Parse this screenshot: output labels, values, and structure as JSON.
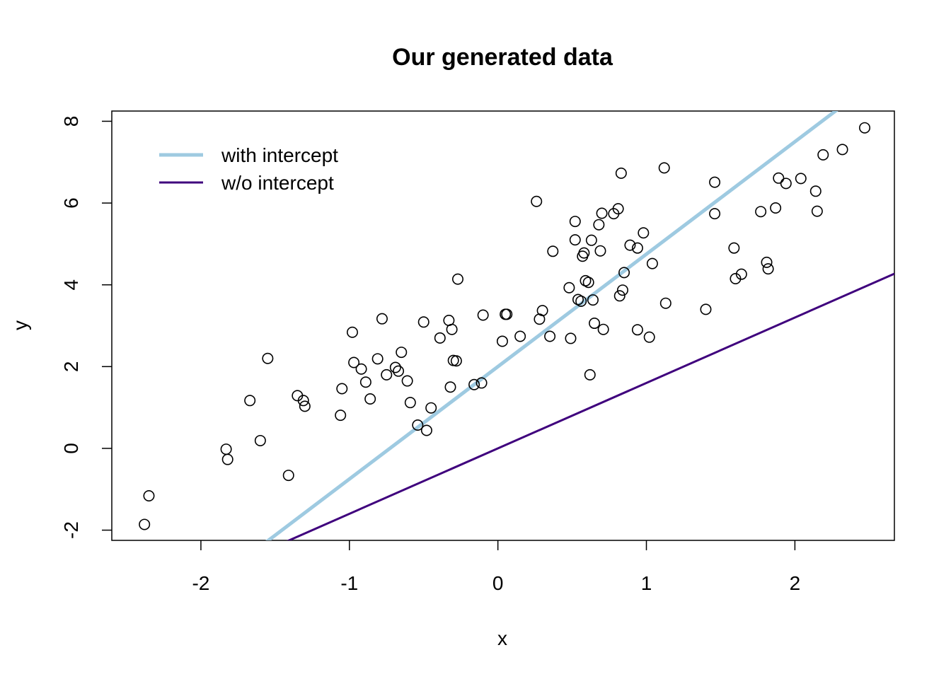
{
  "chart_data": {
    "type": "scatter",
    "title": "Our generated data",
    "xlabel": "x",
    "ylabel": "y",
    "xlim": [
      -2.6,
      2.67
    ],
    "ylim": [
      -2.25,
      8.25
    ],
    "xticks": [
      -2,
      -1,
      0,
      1,
      2
    ],
    "yticks": [
      -2,
      0,
      2,
      4,
      6,
      8
    ],
    "xtick_labels": [
      "-2",
      "-1",
      "0",
      "1",
      "2"
    ],
    "ytick_labels": [
      "-2",
      "0",
      "2",
      "4",
      "6",
      "8"
    ],
    "grid": false,
    "legend_position": "top-left",
    "points": {
      "x": [
        -2.38,
        -2.35,
        -1.83,
        -1.82,
        -1.67,
        -1.6,
        -1.55,
        -1.41,
        -1.35,
        -1.31,
        -1.3,
        -1.06,
        -1.05,
        -0.98,
        -0.97,
        -0.92,
        -0.89,
        -0.86,
        -0.81,
        -0.78,
        -0.75,
        -0.69,
        -0.67,
        -0.65,
        -0.61,
        -0.59,
        -0.54,
        -0.5,
        -0.48,
        -0.45,
        -0.39,
        -0.33,
        -0.32,
        -0.31,
        -0.3,
        -0.28,
        -0.27,
        -0.16,
        -0.11,
        -0.1,
        0.03,
        0.05,
        0.06,
        0.15,
        0.26,
        0.28,
        0.3,
        0.35,
        0.37,
        0.48,
        0.49,
        0.52,
        0.52,
        0.54,
        0.56,
        0.57,
        0.58,
        0.59,
        0.61,
        0.62,
        0.63,
        0.64,
        0.65,
        0.68,
        0.69,
        0.7,
        0.71,
        0.78,
        0.81,
        0.82,
        0.83,
        0.84,
        0.85,
        0.89,
        0.94,
        0.94,
        0.98,
        1.02,
        1.04,
        1.12,
        1.13,
        1.4,
        1.46,
        1.46,
        1.59,
        1.6,
        1.64,
        1.77,
        1.81,
        1.82,
        1.87,
        1.89,
        1.94,
        2.04,
        2.14,
        2.15,
        2.19,
        2.32,
        2.47
      ],
      "y": [
        -1.86,
        -1.16,
        -0.02,
        -0.27,
        1.17,
        0.19,
        2.2,
        -0.66,
        1.29,
        1.17,
        1.03,
        0.81,
        1.46,
        2.84,
        2.1,
        1.94,
        1.62,
        1.21,
        2.19,
        3.17,
        1.8,
        1.98,
        1.89,
        2.35,
        1.65,
        1.12,
        0.57,
        3.09,
        0.44,
        0.99,
        2.7,
        3.13,
        1.5,
        2.91,
        2.15,
        2.14,
        4.14,
        1.56,
        1.6,
        3.26,
        2.62,
        3.28,
        3.28,
        2.74,
        6.04,
        3.16,
        3.37,
        2.74,
        4.82,
        3.93,
        2.69,
        5.1,
        5.55,
        3.64,
        3.6,
        4.7,
        4.78,
        4.1,
        4.06,
        1.8,
        5.09,
        3.63,
        3.06,
        5.47,
        4.83,
        5.75,
        2.91,
        5.74,
        5.86,
        3.73,
        6.73,
        3.87,
        4.3,
        4.97,
        2.9,
        4.9,
        5.27,
        2.72,
        4.52,
        6.86,
        3.55,
        3.4,
        5.74,
        6.51,
        4.9,
        4.15,
        4.26,
        5.79,
        4.55,
        4.39,
        5.88,
        6.61,
        6.48,
        6.6,
        6.29,
        5.8,
        7.18,
        7.31,
        7.84
      ]
    },
    "lines": [
      {
        "name": "with intercept",
        "color": "#9ecae1",
        "intercept": 2.0,
        "slope": 2.75
      },
      {
        "name": "w/o intercept",
        "color": "#3f007d",
        "intercept": 0.0,
        "slope": 1.6
      }
    ]
  }
}
